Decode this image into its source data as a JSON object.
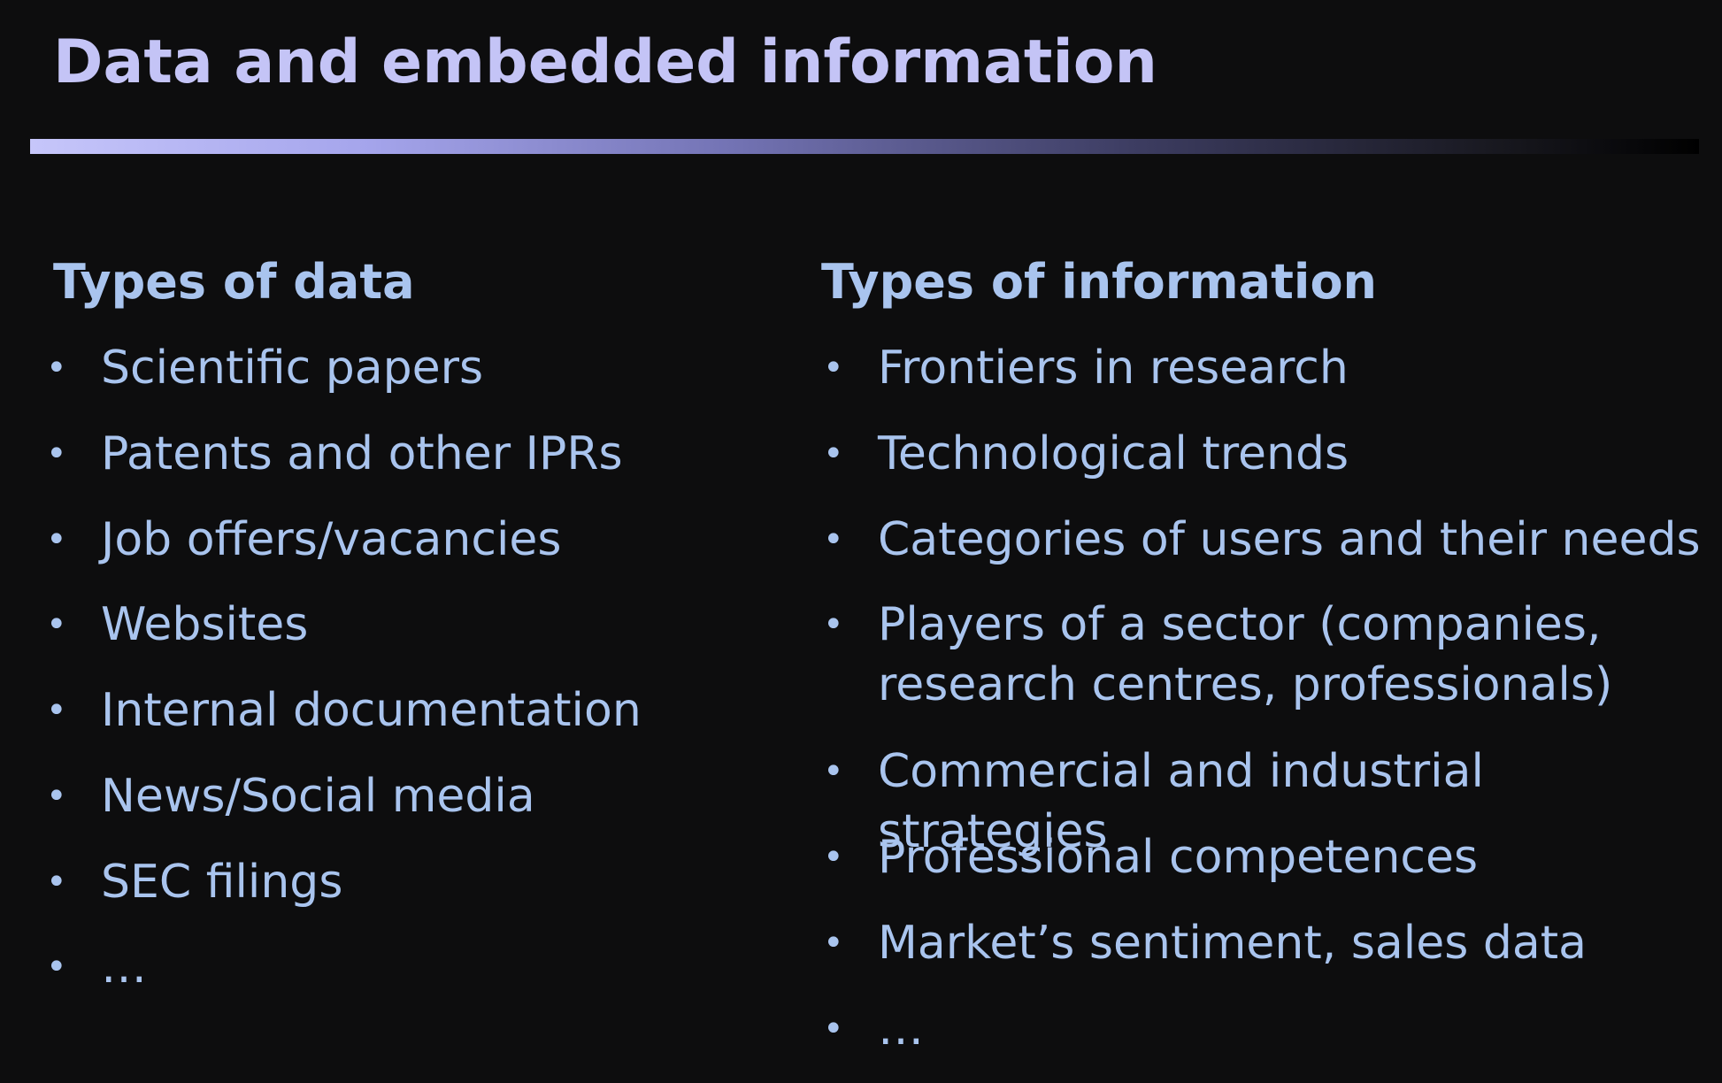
{
  "slide": {
    "title": "Data and embedded information"
  },
  "left_column": {
    "heading": "Types of data",
    "items": [
      "Scientific papers",
      "Patents and other IPRs",
      "Job offers/vacancies",
      "Websites",
      "Internal documentation",
      "News/Social media",
      "SEC filings",
      "…"
    ]
  },
  "right_column": {
    "heading": "Types of information",
    "items": [
      "Frontiers in research",
      "Technological trends",
      "Categories of users and their needs",
      "Players of a sector (companies, research centres, professionals)",
      "Commercial and industrial strategies",
      "Professional competences",
      "Market’s sentiment, sales data",
      "…"
    ]
  },
  "bullet_glyph": "•",
  "colors": {
    "background": "#0d0d0e",
    "title": "#c4c4f6",
    "body_text": "#a9c4ee"
  }
}
